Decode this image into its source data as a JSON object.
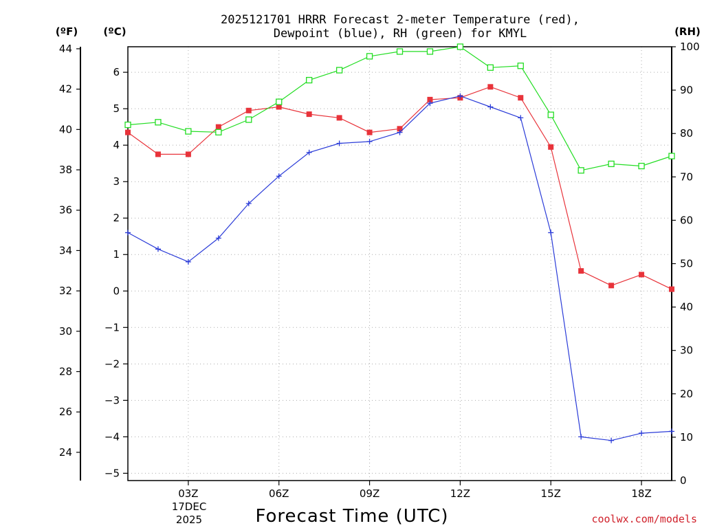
{
  "chart_data": {
    "type": "line",
    "title": "2025121701 HRRR Forecast 2-meter Temperature (red),",
    "title_line2": "Dewpoint (blue), RH (green) for KMYL",
    "xlabel": "Forecast Time (UTC)",
    "date_label": {
      "day": "17DEC",
      "year": "2025"
    },
    "credit": "coolwx.com/models",
    "units": {
      "fahrenheit": "(ºF)",
      "celsius": "(ºC)",
      "rh": "(RH)"
    },
    "x_hours": [
      1,
      2,
      3,
      4,
      5,
      6,
      7,
      8,
      9,
      10,
      11,
      12,
      13,
      14,
      15,
      16,
      17,
      18,
      19
    ],
    "x_ticks": [
      {
        "hour": 3,
        "label": "03Z"
      },
      {
        "hour": 6,
        "label": "06Z"
      },
      {
        "hour": 9,
        "label": "09Z"
      },
      {
        "hour": 12,
        "label": "12Z"
      },
      {
        "hour": 15,
        "label": "15Z"
      },
      {
        "hour": 18,
        "label": "18Z"
      }
    ],
    "xlim": [
      1,
      19
    ],
    "celsius_axis": {
      "ylim": [
        -5.2,
        6.7
      ],
      "ticks": [
        -5,
        -4,
        -3,
        -2,
        -1,
        0,
        1,
        2,
        3,
        4,
        5,
        6
      ]
    },
    "fahrenheit_axis": {
      "ylim": [
        22.6,
        44.1
      ],
      "ticks": [
        24,
        26,
        28,
        30,
        32,
        34,
        36,
        38,
        40,
        42,
        44
      ]
    },
    "rh_axis": {
      "ylim": [
        0,
        100
      ],
      "ticks": [
        0,
        10,
        20,
        30,
        40,
        50,
        60,
        70,
        80,
        90,
        100
      ]
    },
    "series": [
      {
        "name": "Temperature",
        "color": "#e8333a",
        "marker": "filled-square",
        "axis": "celsius",
        "values": [
          4.35,
          3.75,
          3.75,
          4.5,
          4.95,
          5.05,
          4.85,
          4.75,
          4.35,
          4.45,
          5.25,
          5.3,
          5.6,
          5.3,
          3.95,
          0.55,
          0.15,
          0.45,
          0.05
        ]
      },
      {
        "name": "Dewpoint",
        "color": "#2a3bd8",
        "marker": "plus",
        "axis": "celsius",
        "values": [
          1.6,
          1.15,
          0.8,
          1.45,
          2.4,
          3.15,
          3.8,
          4.05,
          4.1,
          4.35,
          5.15,
          5.35,
          5.05,
          4.75,
          1.6,
          -4.0,
          -4.1,
          -3.9,
          -3.85
        ]
      },
      {
        "name": "RH",
        "color": "#22dd22",
        "marker": "open-square",
        "axis": "rh",
        "values": [
          82,
          82.6,
          80.5,
          80.3,
          83.2,
          87.3,
          92.3,
          94.6,
          97.8,
          98.9,
          98.9,
          100,
          95.2,
          95.6,
          84.3,
          71.5,
          73,
          72.5,
          74.8
        ]
      }
    ]
  }
}
